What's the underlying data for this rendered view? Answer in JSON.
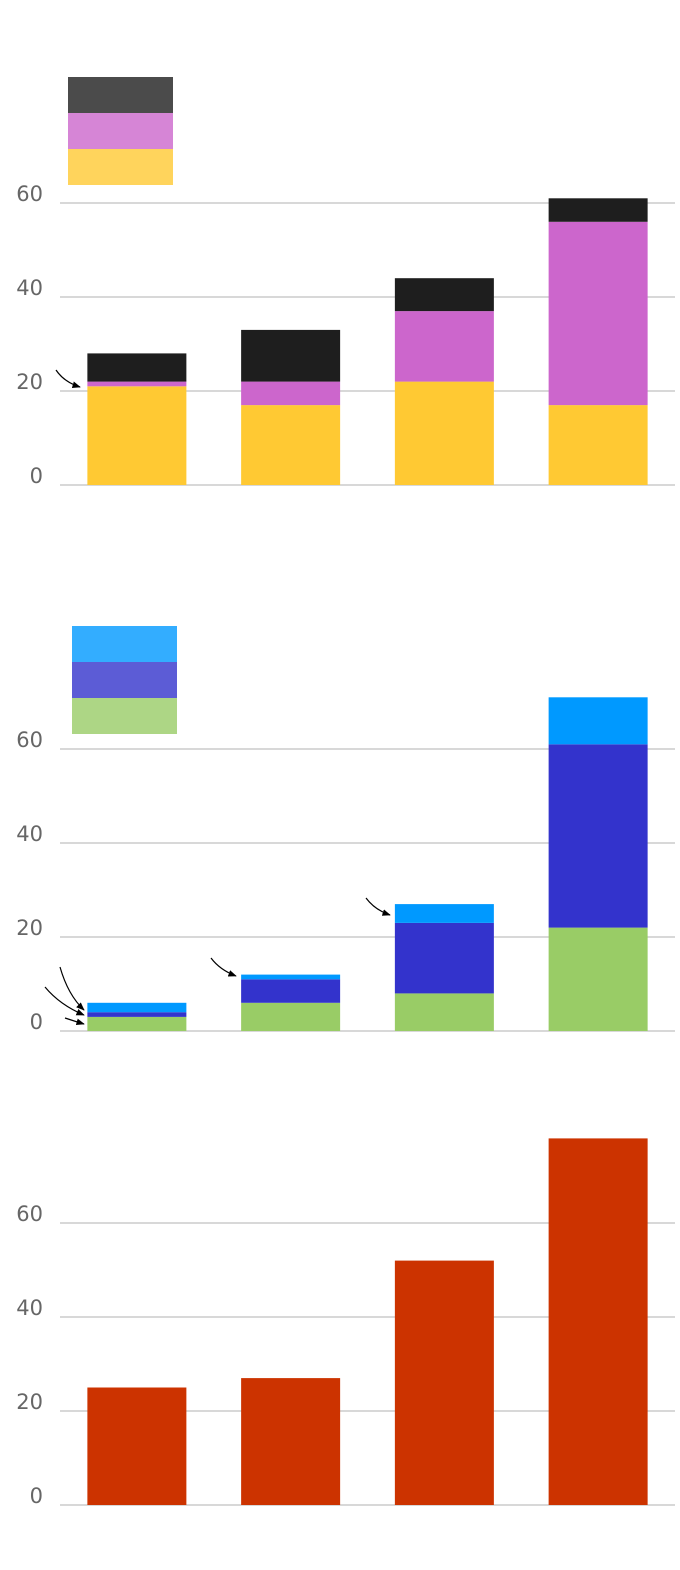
{
  "chart_data": [
    {
      "type": "bar",
      "stacked": true,
      "categories": [
        null,
        null,
        null,
        null
      ],
      "series": [
        {
          "color": "#ffc933",
          "values": [
            21,
            17,
            22,
            17
          ]
        },
        {
          "color": "#cc66cc",
          "values": [
            1,
            5,
            15,
            39
          ]
        },
        {
          "color": "#1e1e1e",
          "values": [
            6,
            11,
            7,
            5
          ]
        }
      ],
      "ylim": [
        0,
        62
      ],
      "yticks": [
        0,
        20,
        40,
        60
      ],
      "grid": true,
      "legend": "upper left"
    },
    {
      "type": "bar",
      "stacked": true,
      "categories": [
        null,
        null,
        null,
        null
      ],
      "series": [
        {
          "color": "#99cc66",
          "values": [
            3,
            6,
            8,
            22
          ]
        },
        {
          "color": "#3333cc",
          "values": [
            1,
            5,
            15,
            39
          ]
        },
        {
          "color": "#0099ff",
          "values": [
            2,
            1,
            4,
            10
          ]
        }
      ],
      "ylim": [
        0,
        72
      ],
      "yticks": [
        0,
        20,
        40,
        60
      ],
      "grid": true,
      "legend": "upper left"
    },
    {
      "type": "bar",
      "categories": [
        null,
        null,
        null,
        null
      ],
      "values": [
        25,
        27,
        52,
        78
      ],
      "color": "#cc3300",
      "ylim": [
        0,
        80
      ],
      "yticks": [
        0,
        20,
        40,
        60
      ],
      "grid": true
    }
  ]
}
